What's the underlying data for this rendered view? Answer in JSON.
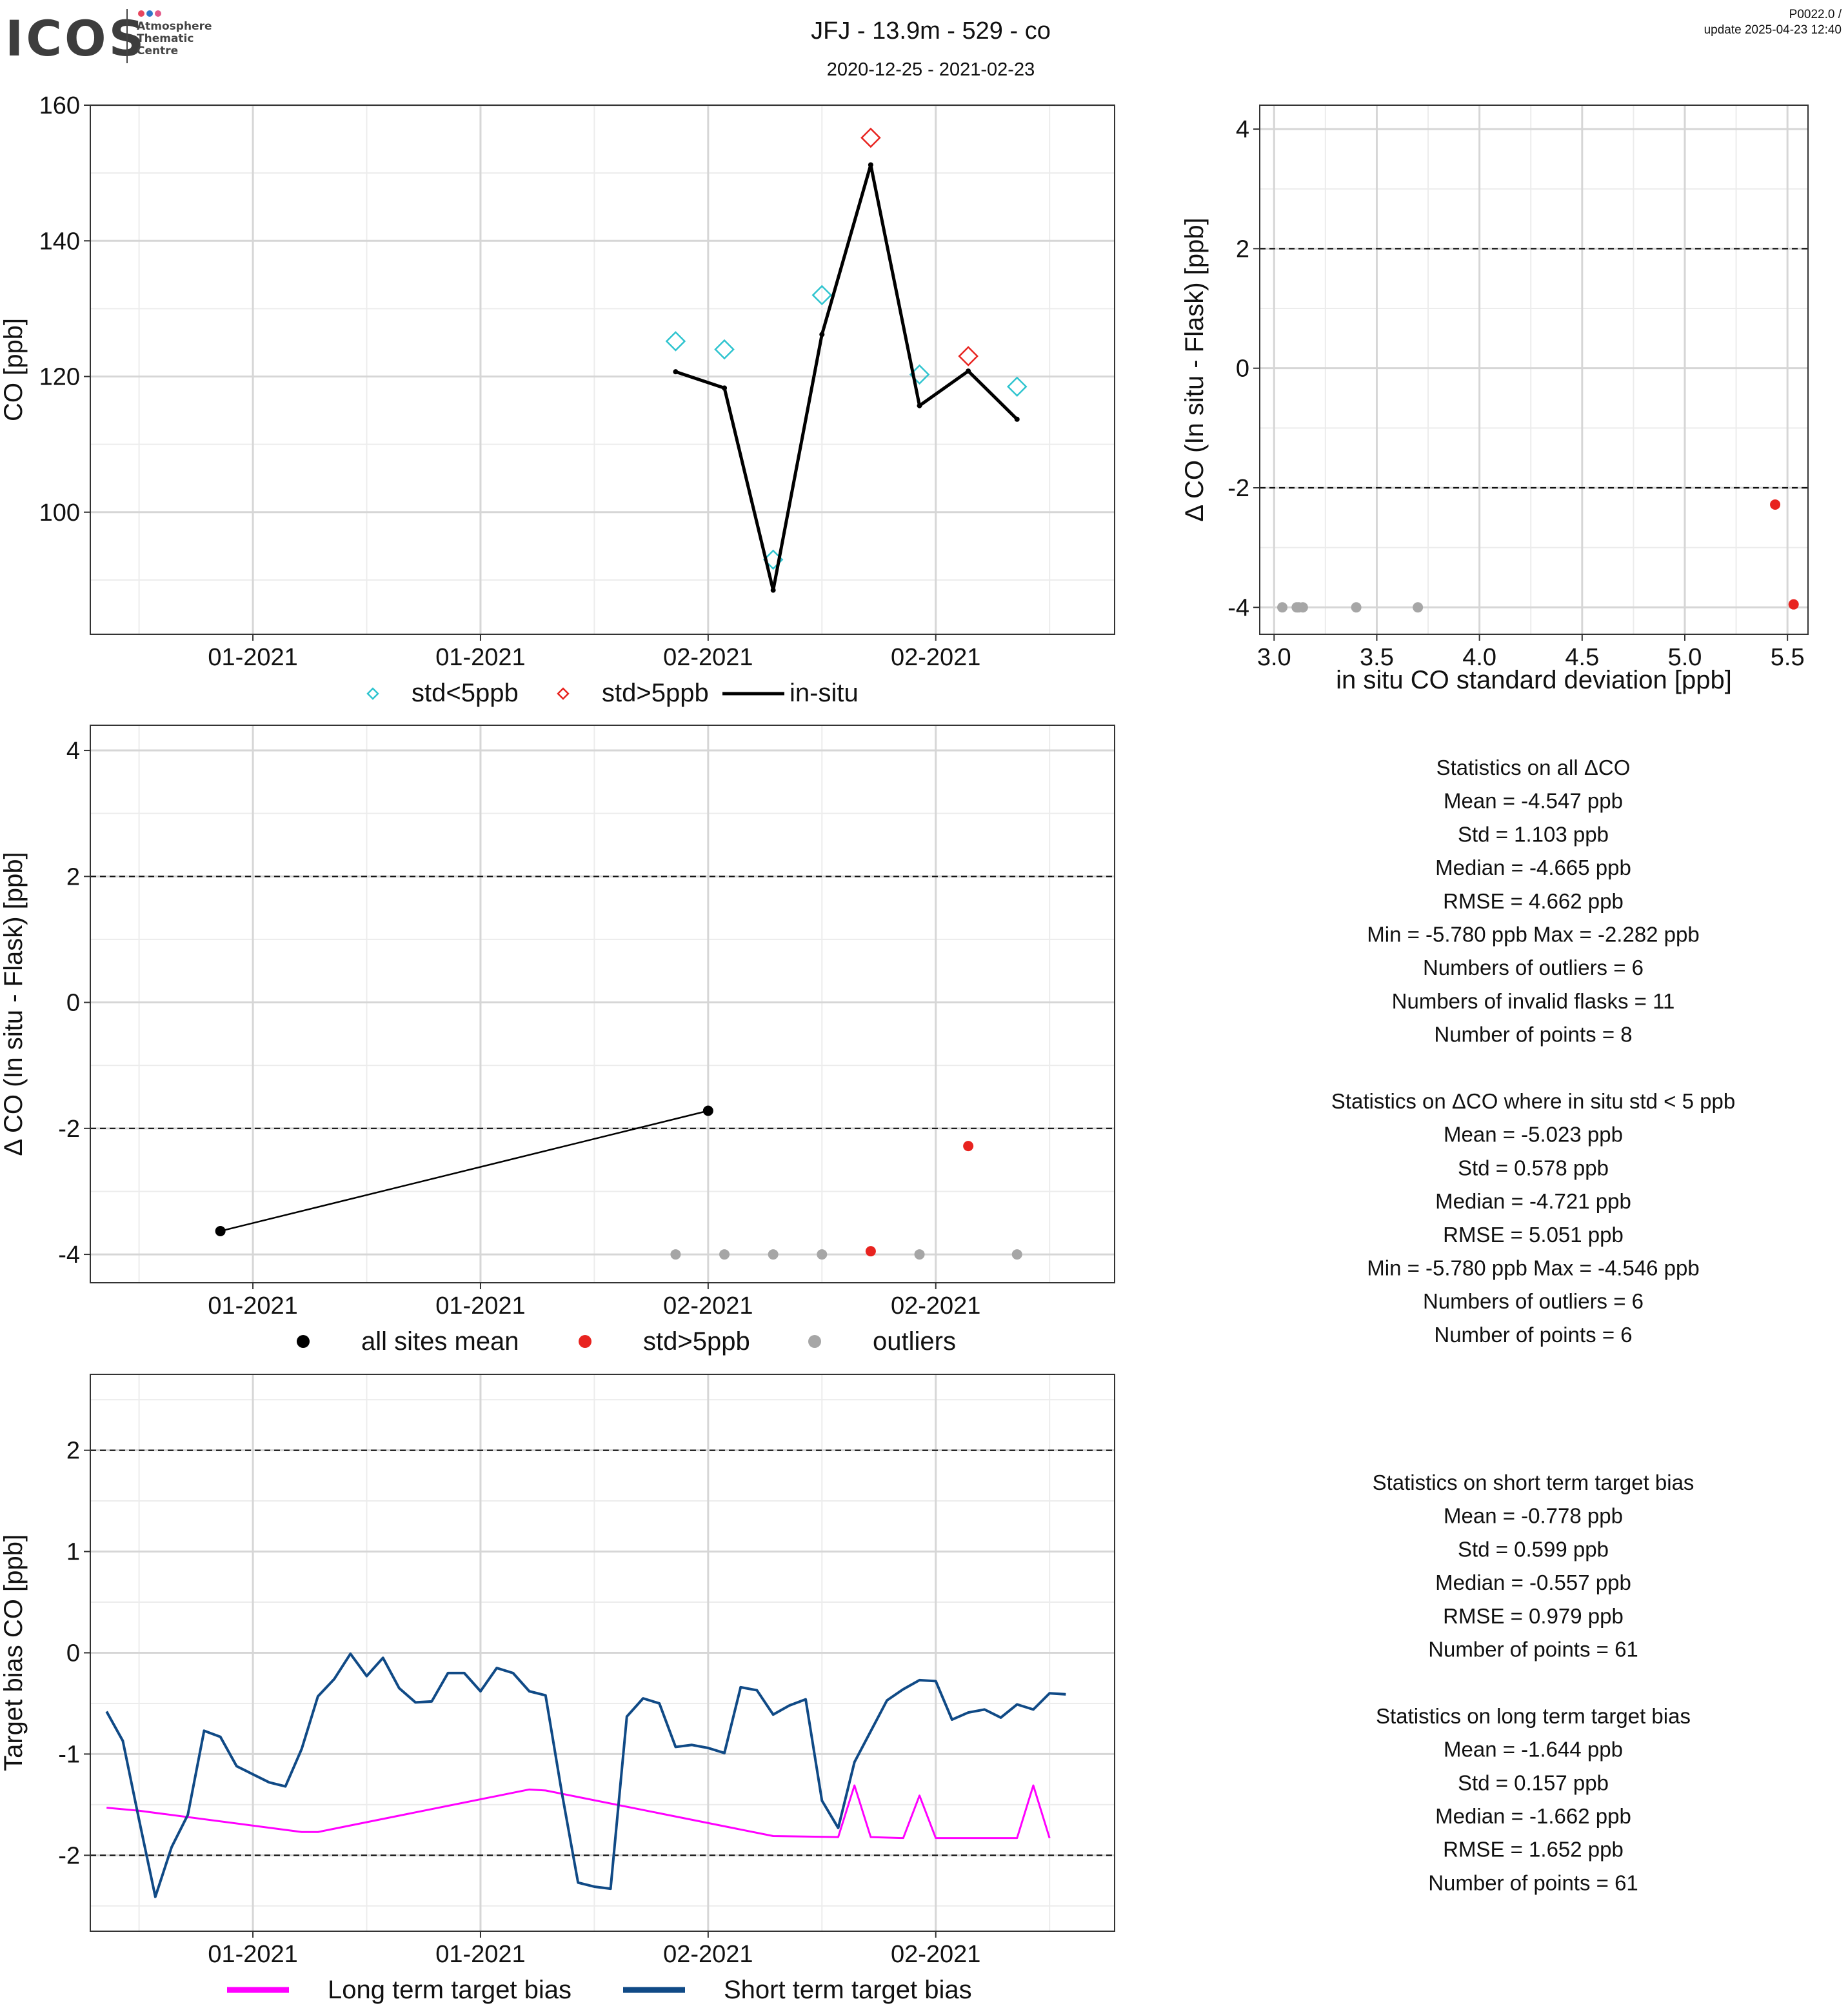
{
  "header": {
    "logo_text": "ICOS",
    "logo_sub": [
      "Atmosphere",
      "Thematic",
      "Centre"
    ],
    "title": "JFJ - 13.9m - 529 - co",
    "subtitle": "2020-12-25 - 2021-02-23",
    "version": "P0022.0 /",
    "update": "update  2025-04-23 12:40"
  },
  "colors": {
    "std_lt5": "#2ec4cf",
    "std_gt5": "#e8231f",
    "insitu": "#000000",
    "outlier": "#a6a6a6",
    "long_bias": "#ff00ff",
    "short_bias": "#104a86"
  },
  "chart_data": [
    {
      "id": "co_timeseries",
      "type": "line",
      "ylabel": "CO [ppb]",
      "ylim": [
        82,
        160
      ],
      "yticks": [
        100,
        120,
        140,
        160
      ],
      "x_tick_labels": [
        "01-2021",
        "01-2021",
        "02-2021",
        "02-2021"
      ],
      "x_tick_dates": [
        "2021-01-01",
        "2021-01-15",
        "2021-01-29",
        "2021-02-12"
      ],
      "xlim": [
        "2020-12-22",
        "2021-02-23"
      ],
      "grid": true,
      "series": [
        {
          "name": "std<5ppb",
          "marker": "diamond",
          "points": [
            {
              "x": "2021-01-27",
              "y": 125.2
            },
            {
              "x": "2021-01-30",
              "y": 124.0
            },
            {
              "x": "2021-02-02",
              "y": 93.0
            },
            {
              "x": "2021-02-05",
              "y": 132.0
            },
            {
              "x": "2021-02-11",
              "y": 120.3
            },
            {
              "x": "2021-02-17",
              "y": 118.5
            }
          ]
        },
        {
          "name": "std>5ppb",
          "marker": "diamond",
          "points": [
            {
              "x": "2021-02-08",
              "y": 155.2
            },
            {
              "x": "2021-02-14",
              "y": 123.0
            }
          ]
        },
        {
          "name": "in-situ",
          "marker": "line",
          "points": [
            {
              "x": "2021-01-27",
              "y": 120.7
            },
            {
              "x": "2021-01-30",
              "y": 118.3
            },
            {
              "x": "2021-02-02",
              "y": 88.5
            },
            {
              "x": "2021-02-05",
              "y": 126.2
            },
            {
              "x": "2021-02-08",
              "y": 151.2
            },
            {
              "x": "2021-02-11",
              "y": 115.7
            },
            {
              "x": "2021-02-14",
              "y": 120.8
            },
            {
              "x": "2021-02-17",
              "y": 113.7
            }
          ]
        }
      ],
      "legend": [
        "std<5ppb",
        "std>5ppb",
        "in-situ"
      ],
      "legend_position": "bottom"
    },
    {
      "id": "delta_vs_std",
      "type": "scatter",
      "xlabel": "in situ CO standard deviation [ppb]",
      "ylabel": "Δ CO (In situ - Flask) [ppb]",
      "xlim": [
        2.93,
        5.6
      ],
      "ylim": [
        -4.45,
        4.4
      ],
      "xticks": [
        3.0,
        3.5,
        4.0,
        4.5,
        5.0,
        5.5
      ],
      "x_tick_labels": [
        "3.0",
        "3.5",
        "4.0",
        "4.5",
        "5.0",
        "5.5"
      ],
      "yticks": [
        -4,
        -2,
        0,
        2,
        4
      ],
      "hlines": [
        -2,
        2
      ],
      "grid": true,
      "series": [
        {
          "name": "outliers",
          "points": [
            {
              "x": 3.04,
              "y": -4.0
            },
            {
              "x": 3.11,
              "y": -4.0
            },
            {
              "x": 3.14,
              "y": -4.0
            },
            {
              "x": 3.12,
              "y": -4.0
            },
            {
              "x": 3.4,
              "y": -4.0
            },
            {
              "x": 3.7,
              "y": -4.0
            }
          ]
        },
        {
          "name": "std>5ppb",
          "points": [
            {
              "x": 5.44,
              "y": -2.28
            },
            {
              "x": 5.53,
              "y": -3.95
            }
          ]
        }
      ]
    },
    {
      "id": "delta_timeseries",
      "type": "scatter",
      "ylabel": "Δ CO (In situ - Flask) [ppb]",
      "ylim": [
        -4.45,
        4.4
      ],
      "yticks": [
        -4,
        -2,
        0,
        2,
        4
      ],
      "hlines": [
        -2,
        2
      ],
      "x_tick_labels": [
        "01-2021",
        "01-2021",
        "02-2021",
        "02-2021"
      ],
      "x_tick_dates": [
        "2021-01-01",
        "2021-01-15",
        "2021-01-29",
        "2021-02-12"
      ],
      "xlim": [
        "2020-12-22",
        "2021-02-23"
      ],
      "grid": true,
      "series": [
        {
          "name": "all sites mean",
          "points": [
            {
              "x": "2020-12-30",
              "y": -3.63
            },
            {
              "x": "2021-01-29",
              "y": -1.72
            }
          ]
        },
        {
          "name": "std>5ppb",
          "points": [
            {
              "x": "2021-02-08",
              "y": -3.95
            },
            {
              "x": "2021-02-14",
              "y": -2.28
            }
          ]
        },
        {
          "name": "outliers",
          "points": [
            {
              "x": "2021-01-27",
              "y": -4.0
            },
            {
              "x": "2021-01-30",
              "y": -4.0
            },
            {
              "x": "2021-02-02",
              "y": -4.0
            },
            {
              "x": "2021-02-05",
              "y": -4.0
            },
            {
              "x": "2021-02-11",
              "y": -4.0
            },
            {
              "x": "2021-02-17",
              "y": -4.0
            }
          ]
        }
      ],
      "legend": [
        "all sites mean",
        "std>5ppb",
        "outliers"
      ],
      "legend_position": "bottom"
    },
    {
      "id": "target_bias",
      "type": "line",
      "ylabel": "Target bias CO [ppb]",
      "ylim": [
        -2.75,
        2.75
      ],
      "yticks": [
        -2,
        -1,
        0,
        1,
        2
      ],
      "hlines": [
        -2,
        2
      ],
      "x_tick_labels": [
        "01-2021",
        "01-2021",
        "02-2021",
        "02-2021"
      ],
      "x_tick_dates": [
        "2021-01-01",
        "2021-01-15",
        "2021-01-29",
        "2021-02-12"
      ],
      "xlim": [
        "2020-12-22",
        "2021-02-23"
      ],
      "grid": true,
      "series": [
        {
          "name": "Long term target bias",
          "points": [
            {
              "x": "2020-12-23",
              "y": -1.53
            },
            {
              "x": "2020-12-25",
              "y": -1.56
            },
            {
              "x": "2021-01-04",
              "y": -1.77
            },
            {
              "x": "2021-01-05",
              "y": -1.77
            },
            {
              "x": "2021-01-18",
              "y": -1.35
            },
            {
              "x": "2021-01-19",
              "y": -1.36
            },
            {
              "x": "2021-02-02",
              "y": -1.81
            },
            {
              "x": "2021-02-06",
              "y": -1.82
            },
            {
              "x": "2021-02-07",
              "y": -1.31
            },
            {
              "x": "2021-02-08",
              "y": -1.82
            },
            {
              "x": "2021-02-10",
              "y": -1.83
            },
            {
              "x": "2021-02-11",
              "y": -1.41
            },
            {
              "x": "2021-02-12",
              "y": -1.83
            },
            {
              "x": "2021-02-17",
              "y": -1.83
            },
            {
              "x": "2021-02-18",
              "y": -1.31
            },
            {
              "x": "2021-02-19",
              "y": -1.83
            }
          ]
        },
        {
          "name": "Short term target bias",
          "points": [
            {
              "x": "2020-12-23",
              "y": -0.58
            },
            {
              "x": "2020-12-24",
              "y": -0.87
            },
            {
              "x": "2020-12-25",
              "y": -1.65
            },
            {
              "x": "2020-12-26",
              "y": -2.41
            },
            {
              "x": "2020-12-27",
              "y": -1.92
            },
            {
              "x": "2020-12-28",
              "y": -1.6
            },
            {
              "x": "2020-12-29",
              "y": -0.77
            },
            {
              "x": "2020-12-30",
              "y": -0.83
            },
            {
              "x": "2020-12-31",
              "y": -1.12
            },
            {
              "x": "2021-01-01",
              "y": -1.2
            },
            {
              "x": "2021-01-02",
              "y": -1.28
            },
            {
              "x": "2021-01-03",
              "y": -1.32
            },
            {
              "x": "2021-01-04",
              "y": -0.95
            },
            {
              "x": "2021-01-05",
              "y": -0.43
            },
            {
              "x": "2021-01-06",
              "y": -0.26
            },
            {
              "x": "2021-01-07",
              "y": -0.01
            },
            {
              "x": "2021-01-08",
              "y": -0.23
            },
            {
              "x": "2021-01-09",
              "y": -0.05
            },
            {
              "x": "2021-01-10",
              "y": -0.35
            },
            {
              "x": "2021-01-11",
              "y": -0.49
            },
            {
              "x": "2021-01-12",
              "y": -0.48
            },
            {
              "x": "2021-01-13",
              "y": -0.2
            },
            {
              "x": "2021-01-14",
              "y": -0.2
            },
            {
              "x": "2021-01-15",
              "y": -0.38
            },
            {
              "x": "2021-01-16",
              "y": -0.15
            },
            {
              "x": "2021-01-17",
              "y": -0.2
            },
            {
              "x": "2021-01-18",
              "y": -0.38
            },
            {
              "x": "2021-01-19",
              "y": -0.42
            },
            {
              "x": "2021-01-20",
              "y": -1.38
            },
            {
              "x": "2021-01-21",
              "y": -2.27
            },
            {
              "x": "2021-01-22",
              "y": -2.31
            },
            {
              "x": "2021-01-23",
              "y": -2.33
            },
            {
              "x": "2021-01-24",
              "y": -0.63
            },
            {
              "x": "2021-01-25",
              "y": -0.45
            },
            {
              "x": "2021-01-26",
              "y": -0.5
            },
            {
              "x": "2021-01-27",
              "y": -0.93
            },
            {
              "x": "2021-01-28",
              "y": -0.91
            },
            {
              "x": "2021-01-29",
              "y": -0.94
            },
            {
              "x": "2021-01-30",
              "y": -0.99
            },
            {
              "x": "2021-01-31",
              "y": -0.34
            },
            {
              "x": "2021-02-01",
              "y": -0.37
            },
            {
              "x": "2021-02-02",
              "y": -0.61
            },
            {
              "x": "2021-02-03",
              "y": -0.52
            },
            {
              "x": "2021-02-04",
              "y": -0.46
            },
            {
              "x": "2021-02-05",
              "y": -1.46
            },
            {
              "x": "2021-02-06",
              "y": -1.73
            },
            {
              "x": "2021-02-07",
              "y": -1.08
            },
            {
              "x": "2021-02-09",
              "y": -0.47
            },
            {
              "x": "2021-02-10",
              "y": -0.36
            },
            {
              "x": "2021-02-11",
              "y": -0.27
            },
            {
              "x": "2021-02-12",
              "y": -0.28
            },
            {
              "x": "2021-02-13",
              "y": -0.66
            },
            {
              "x": "2021-02-14",
              "y": -0.59
            },
            {
              "x": "2021-02-15",
              "y": -0.56
            },
            {
              "x": "2021-02-16",
              "y": -0.64
            },
            {
              "x": "2021-02-17",
              "y": -0.51
            },
            {
              "x": "2021-02-18",
              "y": -0.56
            },
            {
              "x": "2021-02-19",
              "y": -0.4
            },
            {
              "x": "2021-02-20",
              "y": -0.41
            }
          ]
        }
      ],
      "legend": [
        "Long term target bias",
        "Short term target bias"
      ],
      "legend_position": "bottom"
    }
  ],
  "stats_delta": [
    "Statistics on all ΔCO",
    "Mean =  -4.547 ppb",
    "Std =  1.103 ppb",
    "Median =  -4.665 ppb",
    "RMSE =  4.662 ppb",
    "Min =  -5.780 ppb Max =  -2.282 ppb",
    "Numbers of outliers =  6",
    "Numbers of invalid flasks =  11",
    "Number of points =  8",
    "",
    "Statistics on ΔCO where in situ std < 5 ppb",
    "Mean =  -5.023 ppb",
    "Std =  0.578 ppb",
    "Median =  -4.721 ppb",
    "RMSE =  5.051 ppb",
    "Min =  -5.780 ppb Max =  -4.546 ppb",
    "Numbers of outliers =  6",
    "Number of points =  6"
  ],
  "stats_bias": [
    "Statistics on short term target bias",
    "Mean =  -0.778 ppb",
    "Std =  0.599 ppb",
    "Median =  -0.557 ppb",
    "RMSE =  0.979 ppb",
    "Number of points =  61",
    "",
    "Statistics on long term target bias",
    "Mean =  -1.644 ppb",
    "Std =  0.157 ppb",
    "Median =  -1.662 ppb",
    "RMSE =  1.652 ppb",
    "Number of points =  61"
  ]
}
